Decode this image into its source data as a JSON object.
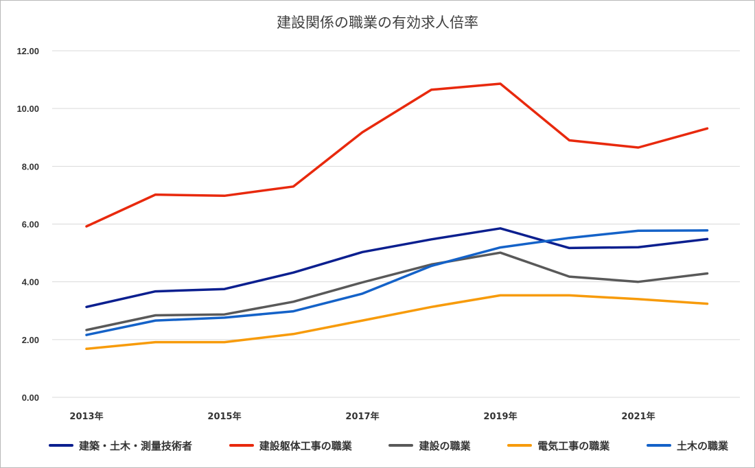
{
  "chart_data": {
    "type": "line",
    "title": "建設関係の職業の有効求人倍率",
    "xlabel": "",
    "ylabel": "",
    "x": [
      "2013年",
      "2014年",
      "2015年",
      "2016年",
      "2017年",
      "2018年",
      "2019年",
      "2020年",
      "2021年",
      "2022年"
    ],
    "x_tick_labels": [
      "2013年",
      "",
      "2015年",
      "",
      "2017年",
      "",
      "2019年",
      "",
      "2021年",
      ""
    ],
    "y_tick_labels": [
      "0.00",
      "2.00",
      "4.00",
      "6.00",
      "8.00",
      "10.00",
      "12.00"
    ],
    "ylim": [
      0,
      12
    ],
    "grid": true,
    "legend_position": "bottom",
    "series": [
      {
        "name": "建築・土木・測量技術者",
        "color": "#0b1f8f",
        "values": [
          3.13,
          3.67,
          3.75,
          4.32,
          5.03,
          5.47,
          5.85,
          5.17,
          5.2,
          5.48
        ]
      },
      {
        "name": "建設躯体工事の職業",
        "color": "#e8290d",
        "values": [
          5.92,
          7.02,
          6.98,
          7.3,
          9.18,
          10.65,
          10.86,
          8.9,
          8.65,
          9.31
        ]
      },
      {
        "name": "建設の職業",
        "color": "#595959",
        "values": [
          2.33,
          2.84,
          2.87,
          3.31,
          3.98,
          4.6,
          5.01,
          4.18,
          4.0,
          4.29
        ]
      },
      {
        "name": "電気工事の職業",
        "color": "#f79b0b",
        "values": [
          1.68,
          1.91,
          1.91,
          2.19,
          2.66,
          3.13,
          3.53,
          3.53,
          3.4,
          3.24
        ]
      },
      {
        "name": "土木の職業",
        "color": "#1462c8",
        "values": [
          2.16,
          2.66,
          2.76,
          2.98,
          3.59,
          4.55,
          5.19,
          5.52,
          5.77,
          5.78
        ]
      }
    ]
  }
}
